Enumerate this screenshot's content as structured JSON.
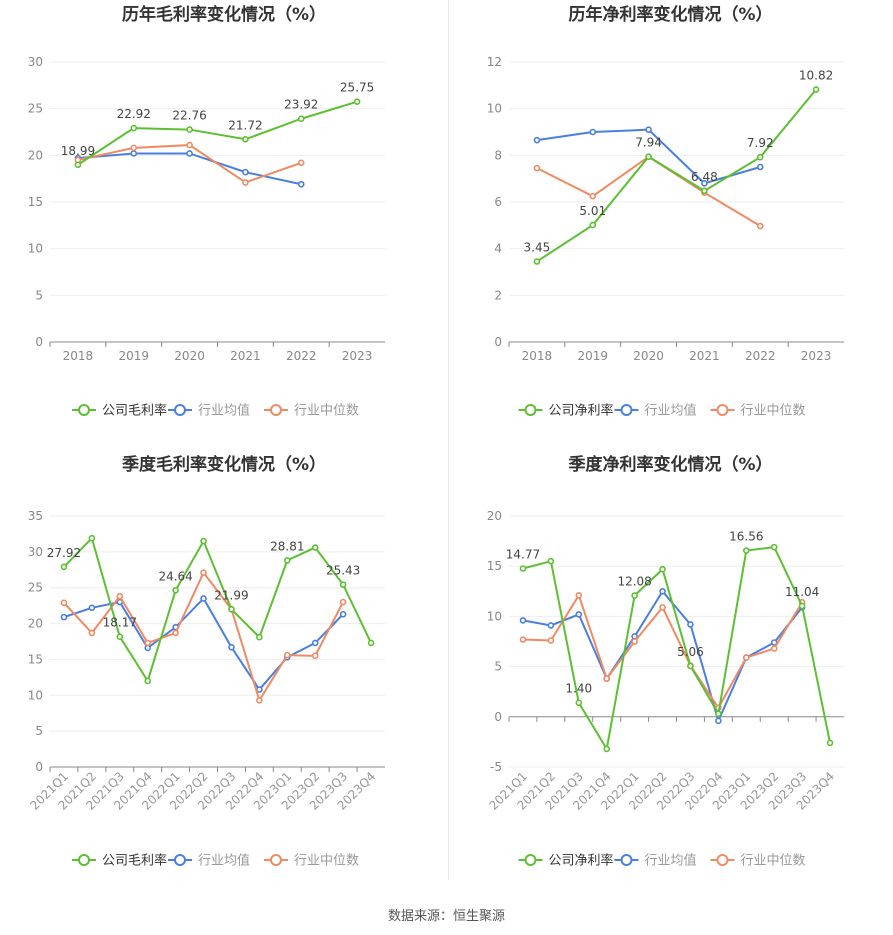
{
  "source": "数据来源：恒生聚源",
  "colors": {
    "company": "#5cc032",
    "avg": "#4a7fe0",
    "median": "#f08a63"
  },
  "chart_data": [
    {
      "type": "line",
      "title": "历年毛利率变化情况（%）",
      "x": [
        "2018",
        "2019",
        "2020",
        "2021",
        "2022",
        "2023"
      ],
      "yticks": [
        "0",
        "5",
        "10",
        "15",
        "20",
        "25",
        "30"
      ],
      "ylim": [
        0,
        30
      ],
      "rotate_x": false,
      "legend_position": "bottom",
      "grid": true,
      "series": [
        {
          "name": "公司毛利率",
          "key": "company",
          "values": [
            18.99,
            22.92,
            22.76,
            21.72,
            23.92,
            25.75
          ],
          "labels": [
            "18.99",
            "22.92",
            "22.76",
            "21.72",
            "23.92",
            "25.75"
          ]
        },
        {
          "name": "行业均值",
          "key": "avg",
          "values": [
            19.7,
            20.2,
            20.2,
            18.2,
            16.9,
            null
          ]
        },
        {
          "name": "行业中位数",
          "key": "median",
          "values": [
            19.5,
            20.8,
            21.1,
            17.1,
            19.2,
            null
          ]
        }
      ]
    },
    {
      "type": "line",
      "title": "历年净利率变化情况（%）",
      "x": [
        "2018",
        "2019",
        "2020",
        "2021",
        "2022",
        "2023"
      ],
      "yticks": [
        "0",
        "2",
        "4",
        "6",
        "8",
        "10",
        "12"
      ],
      "ylim": [
        0,
        12
      ],
      "rotate_x": false,
      "legend_position": "bottom",
      "grid": true,
      "series": [
        {
          "name": "公司净利率",
          "key": "company",
          "values": [
            3.45,
            5.01,
            7.94,
            6.48,
            7.92,
            10.82
          ],
          "labels": [
            "3.45",
            "5.01",
            "7.94",
            "6.48",
            "7.92",
            "10.82"
          ]
        },
        {
          "name": "行业均值",
          "key": "avg",
          "values": [
            8.65,
            9.0,
            9.1,
            6.8,
            7.5,
            null
          ]
        },
        {
          "name": "行业中位数",
          "key": "median",
          "values": [
            7.45,
            6.25,
            7.94,
            6.4,
            4.97,
            null
          ]
        }
      ]
    },
    {
      "type": "line",
      "title": "季度毛利率变化情况（%）",
      "x": [
        "2021Q1",
        "2021Q2",
        "2021Q3",
        "2021Q4",
        "2022Q1",
        "2022Q2",
        "2022Q3",
        "2022Q4",
        "2023Q1",
        "2023Q2",
        "2023Q3",
        "2023Q4"
      ],
      "yticks": [
        "0",
        "5",
        "10",
        "15",
        "20",
        "25",
        "30",
        "35"
      ],
      "ylim": [
        0,
        35
      ],
      "rotate_x": true,
      "legend_position": "bottom",
      "grid": true,
      "series": [
        {
          "name": "公司毛利率",
          "key": "company",
          "values": [
            27.92,
            31.9,
            18.17,
            12.0,
            24.64,
            31.5,
            21.99,
            18.1,
            28.81,
            30.6,
            25.43,
            17.3
          ],
          "labels": [
            "27.92",
            "",
            "18.17",
            "",
            "24.64",
            "",
            "21.99",
            "",
            "28.81",
            "",
            "25.43",
            ""
          ]
        },
        {
          "name": "行业均值",
          "key": "avg",
          "values": [
            20.9,
            22.2,
            23.0,
            16.6,
            19.5,
            23.5,
            16.7,
            10.8,
            15.3,
            17.3,
            21.3,
            null
          ]
        },
        {
          "name": "行业中位数",
          "key": "median",
          "values": [
            22.9,
            18.7,
            23.8,
            17.3,
            18.7,
            27.1,
            22.0,
            9.3,
            15.6,
            15.5,
            23.0,
            null
          ]
        }
      ]
    },
    {
      "type": "line",
      "title": "季度净利率变化情况（%）",
      "x": [
        "2021Q1",
        "2021Q2",
        "2021Q3",
        "2021Q4",
        "2022Q1",
        "2022Q2",
        "2022Q3",
        "2022Q4",
        "2023Q1",
        "2023Q2",
        "2023Q3",
        "2023Q4"
      ],
      "yticks": [
        "-5",
        "0",
        "5",
        "10",
        "15",
        "20"
      ],
      "ylim": [
        -5,
        20
      ],
      "rotate_x": true,
      "legend_position": "bottom",
      "grid": true,
      "series": [
        {
          "name": "公司净利率",
          "key": "company",
          "values": [
            14.77,
            15.5,
            1.4,
            -3.2,
            12.08,
            14.7,
            5.06,
            0.3,
            16.56,
            16.9,
            11.04,
            -2.6
          ],
          "labels": [
            "14.77",
            "",
            "1.40",
            "",
            "12.08",
            "",
            "5.06",
            "",
            "16.56",
            "",
            "11.04",
            ""
          ]
        },
        {
          "name": "行业均值",
          "key": "avg",
          "values": [
            9.6,
            9.1,
            10.2,
            3.8,
            8.0,
            12.5,
            9.2,
            -0.4,
            5.9,
            7.4,
            10.9,
            null
          ]
        },
        {
          "name": "行业中位数",
          "key": "median",
          "values": [
            7.7,
            7.6,
            12.1,
            3.8,
            7.5,
            10.9,
            5.1,
            0.9,
            5.9,
            6.8,
            11.4,
            null
          ]
        }
      ]
    }
  ]
}
